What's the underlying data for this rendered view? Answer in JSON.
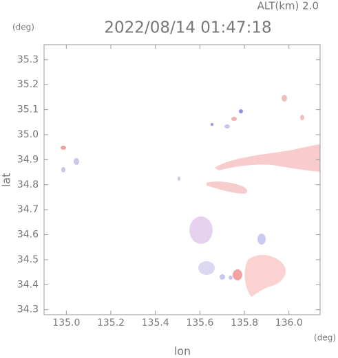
{
  "chart_data": {
    "type": "map",
    "title": "2022/08/14 01:47:18",
    "altitude_label": "ALT(km)  2.0",
    "y_unit": "(deg)",
    "x_unit": "(deg)",
    "xlabel": "lon",
    "ylabel": "lat",
    "xlim": [
      134.9,
      136.14
    ],
    "ylim": [
      34.28,
      35.36
    ],
    "xticks": [
      {
        "value": 135,
        "label": "135.0"
      },
      135.2,
      135.4,
      135.6,
      135.8,
      {
        "value": 136,
        "label": "136.0"
      }
    ],
    "yticks": [
      34.3,
      34.4,
      34.5,
      34.6,
      34.7,
      34.8,
      34.9,
      {
        "value": 35,
        "label": "35.0"
      },
      35.1,
      35.2,
      35.3
    ]
  }
}
